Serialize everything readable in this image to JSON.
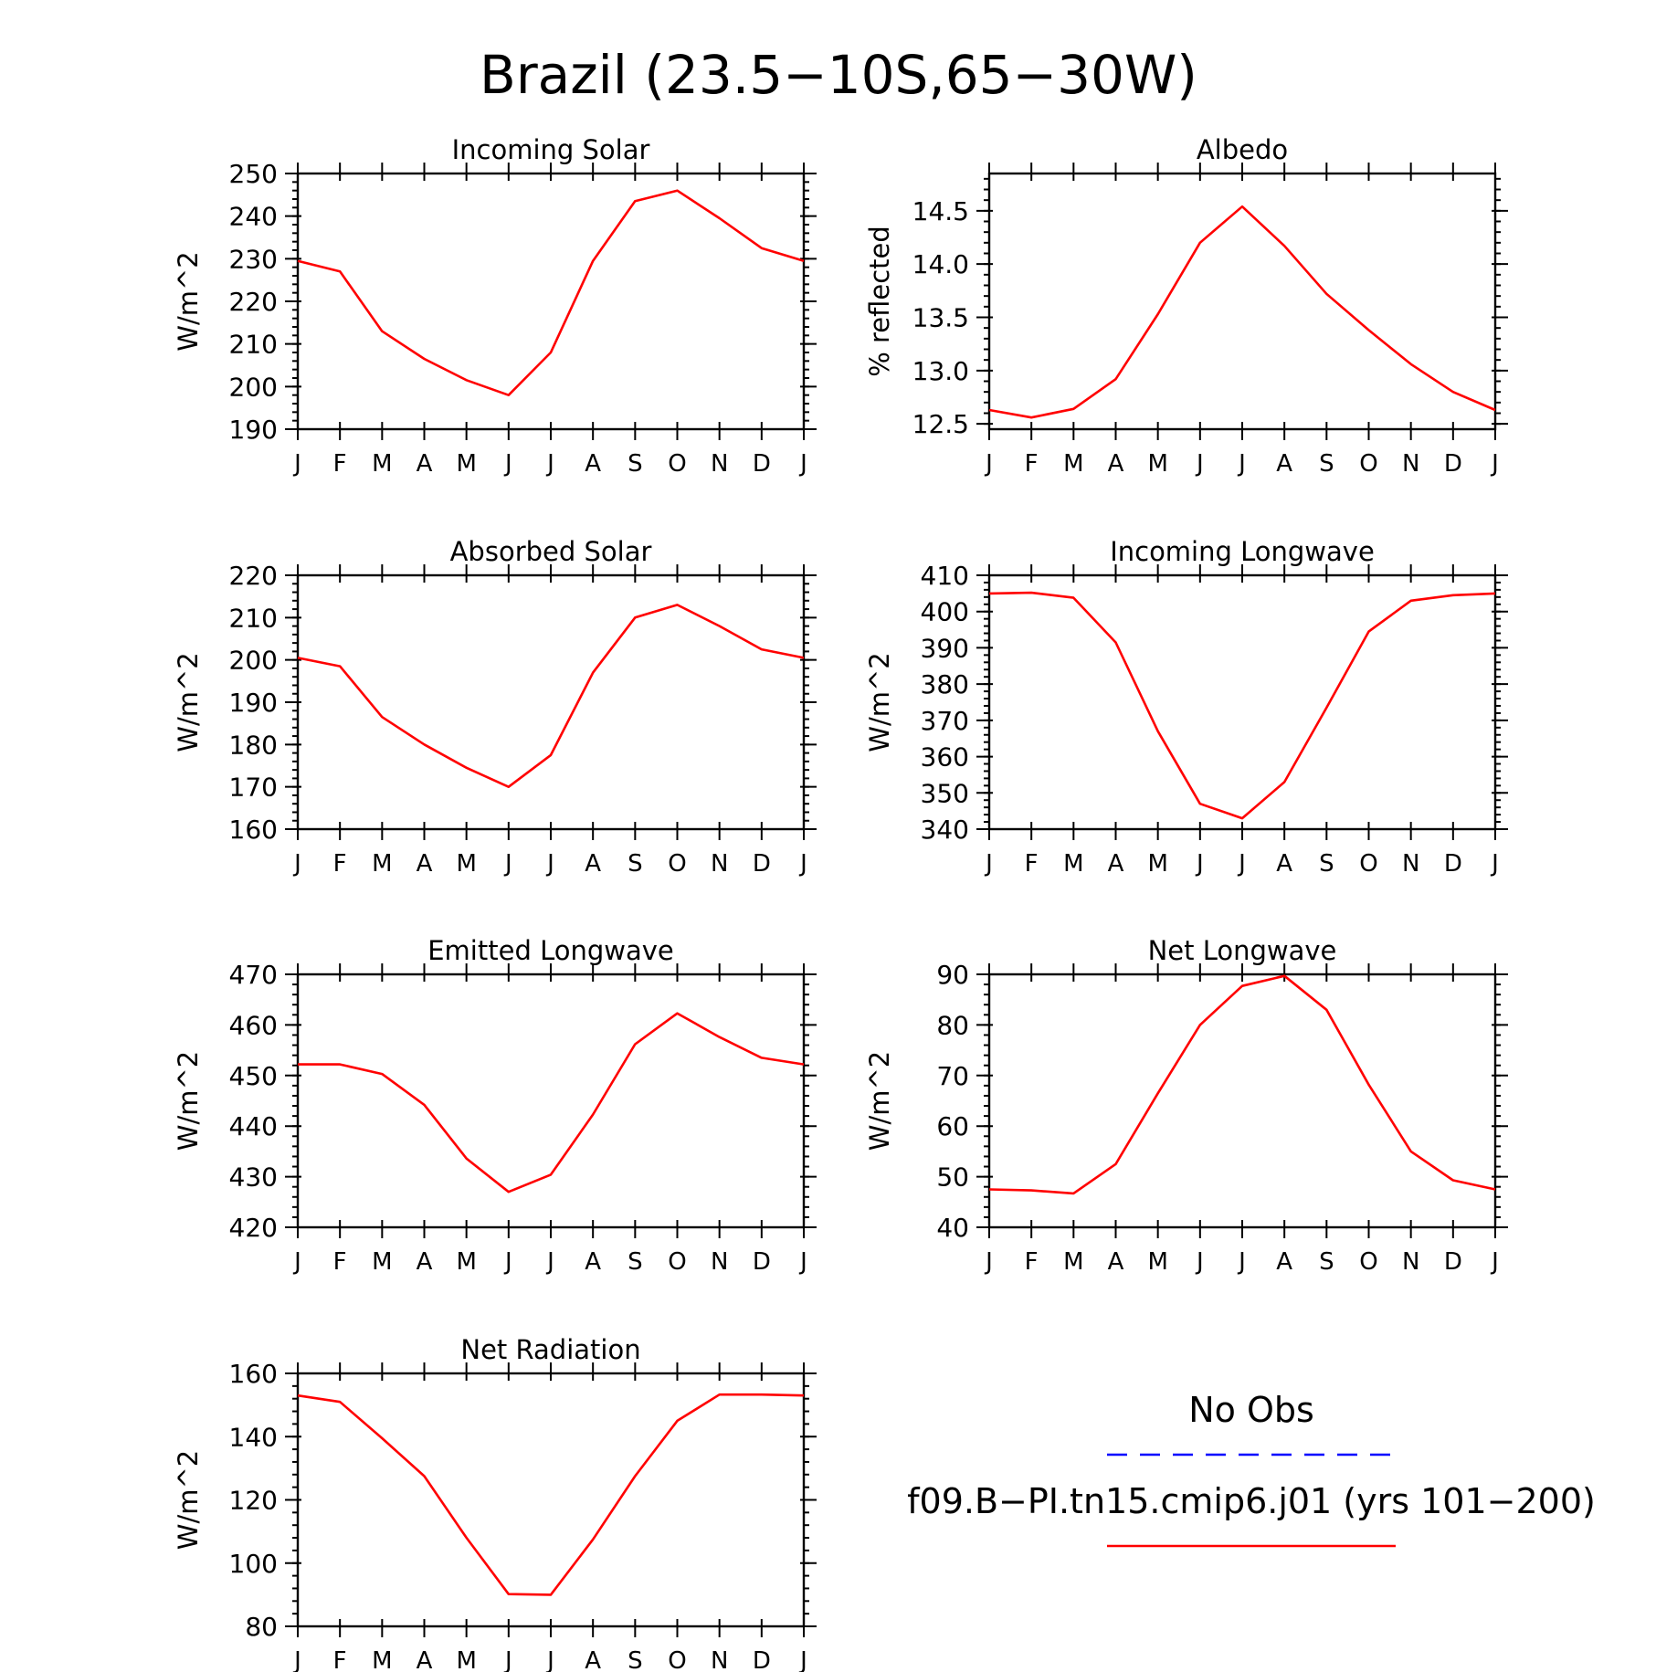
{
  "title": "Brazil (23.5−10S,65−30W)",
  "colors": {
    "model": "#ff0000",
    "obs": "#0000ff",
    "axis": "#000000"
  },
  "legend": {
    "obs_label": "No Obs",
    "model_label": "f09.B−PI.tn15.cmip6.j01 (yrs 101−200)"
  },
  "chart_data": [
    {
      "type": "line",
      "title": "Incoming Solar",
      "ylabel": "W/m^2",
      "ylim": [
        190,
        250
      ],
      "yticks": [
        190,
        200,
        210,
        220,
        230,
        240,
        250
      ],
      "ytick_labels": [
        "190",
        "200",
        "210",
        "220",
        "230",
        "240",
        "250"
      ],
      "x_labels": [
        "J",
        "F",
        "M",
        "A",
        "M",
        "J",
        "J",
        "A",
        "S",
        "O",
        "N",
        "D",
        "J"
      ],
      "series": [
        {
          "values": [
            229.5,
            227,
            213,
            206.5,
            201.5,
            198,
            208,
            229.5,
            243.5,
            246,
            239.5,
            232.5,
            229.5
          ]
        }
      ]
    },
    {
      "type": "line",
      "title": "Albedo",
      "ylabel": "% reflected",
      "ylim": [
        12.45,
        14.85
      ],
      "yticks": [
        12.5,
        13.0,
        13.5,
        14.0,
        14.5
      ],
      "ytick_labels": [
        "12.5",
        "13.0",
        "13.5",
        "14.0",
        "14.5"
      ],
      "x_labels": [
        "J",
        "F",
        "M",
        "A",
        "M",
        "J",
        "J",
        "A",
        "S",
        "O",
        "N",
        "D",
        "J"
      ],
      "series": [
        {
          "values": [
            12.63,
            12.56,
            12.64,
            12.92,
            13.53,
            14.2,
            14.54,
            14.17,
            13.72,
            13.38,
            13.06,
            12.8,
            12.63
          ]
        }
      ]
    },
    {
      "type": "line",
      "title": "Absorbed Solar",
      "ylabel": "W/m^2",
      "ylim": [
        160,
        220
      ],
      "yticks": [
        160,
        170,
        180,
        190,
        200,
        210,
        220
      ],
      "ytick_labels": [
        "160",
        "170",
        "180",
        "190",
        "200",
        "210",
        "220"
      ],
      "x_labels": [
        "J",
        "F",
        "M",
        "A",
        "M",
        "J",
        "J",
        "A",
        "S",
        "O",
        "N",
        "D",
        "J"
      ],
      "series": [
        {
          "values": [
            200.5,
            198.5,
            186.5,
            180,
            174.5,
            170,
            177.5,
            197,
            210,
            213,
            208,
            202.5,
            200.5
          ]
        }
      ]
    },
    {
      "type": "line",
      "title": "Incoming Longwave",
      "ylabel": "W/m^2",
      "ylim": [
        340,
        410
      ],
      "yticks": [
        340,
        350,
        360,
        370,
        380,
        390,
        400,
        410
      ],
      "ytick_labels": [
        "340",
        "350",
        "360",
        "370",
        "380",
        "390",
        "400",
        "410"
      ],
      "x_labels": [
        "J",
        "F",
        "M",
        "A",
        "M",
        "J",
        "J",
        "A",
        "S",
        "O",
        "N",
        "D",
        "J"
      ],
      "series": [
        {
          "values": [
            405,
            405.2,
            403.8,
            391.5,
            367,
            347,
            343,
            353,
            373.5,
            394.5,
            403,
            404.5,
            405
          ]
        }
      ]
    },
    {
      "type": "line",
      "title": "Emitted Longwave",
      "ylabel": "W/m^2",
      "ylim": [
        420,
        470
      ],
      "yticks": [
        420,
        430,
        440,
        450,
        460,
        470
      ],
      "ytick_labels": [
        "420",
        "430",
        "440",
        "450",
        "460",
        "470"
      ],
      "x_labels": [
        "J",
        "F",
        "M",
        "A",
        "M",
        "J",
        "J",
        "A",
        "S",
        "O",
        "N",
        "D",
        "J"
      ],
      "series": [
        {
          "values": [
            452.2,
            452.2,
            450.3,
            444.2,
            433.6,
            427,
            430.4,
            442.3,
            456.2,
            462.3,
            457.6,
            453.5,
            452.2
          ]
        }
      ]
    },
    {
      "type": "line",
      "title": "Net Longwave",
      "ylabel": "W/m^2",
      "ylim": [
        40,
        90
      ],
      "yticks": [
        40,
        50,
        60,
        70,
        80,
        90
      ],
      "ytick_labels": [
        "40",
        "50",
        "60",
        "70",
        "80",
        "90"
      ],
      "x_labels": [
        "J",
        "F",
        "M",
        "A",
        "M",
        "J",
        "J",
        "A",
        "S",
        "O",
        "N",
        "D",
        "J"
      ],
      "series": [
        {
          "values": [
            47.5,
            47.3,
            46.7,
            52.5,
            66.5,
            80,
            87.7,
            89.7,
            83,
            68.2,
            55,
            49.3,
            47.5
          ]
        }
      ]
    },
    {
      "type": "line",
      "title": "Net Radiation",
      "ylabel": "W/m^2",
      "ylim": [
        80,
        160
      ],
      "yticks": [
        80,
        100,
        120,
        140,
        160
      ],
      "ytick_labels": [
        "80",
        "100",
        "120",
        "140",
        "160"
      ],
      "x_labels": [
        "J",
        "F",
        "M",
        "A",
        "M",
        "J",
        "J",
        "A",
        "S",
        "O",
        "N",
        "D",
        "J"
      ],
      "series": [
        {
          "values": [
            153,
            151,
            139.5,
            127.5,
            108,
            90.2,
            90,
            107.5,
            127.5,
            145,
            153.3,
            153.3,
            153
          ]
        }
      ]
    }
  ]
}
